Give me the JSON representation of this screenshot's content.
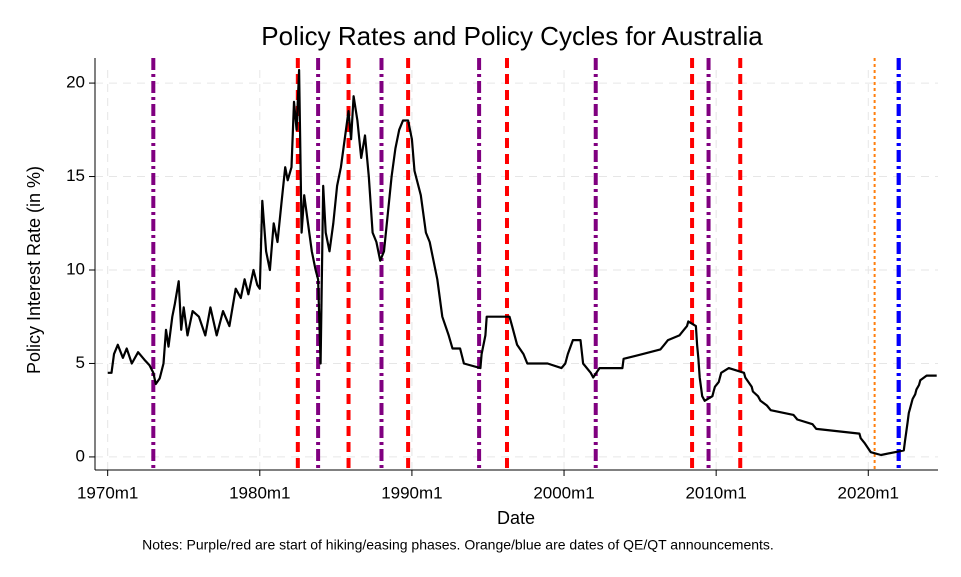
{
  "chart_data": {
    "type": "line",
    "title": "Policy Rates and Policy Cycles for Australia",
    "xlabel": "Date",
    "ylabel": "Policy Interest Rate (in %)",
    "note": "Notes: Purple/red are start of hiking/easing phases. Orange/blue are dates of QE/QT announcements.",
    "xlim": [
      "1969m3",
      "2024m8"
    ],
    "xticks": [
      "1970m1",
      "1980m1",
      "1990m1",
      "2000m1",
      "2010m1",
      "2020m1"
    ],
    "ylim": [
      -0.7,
      20.7
    ],
    "yticks": [
      0,
      5,
      10,
      15,
      20
    ],
    "grid": true,
    "series": [
      {
        "color": "#000000",
        "x": [
          "1970m1",
          "1970m4",
          "1970m6",
          "1970m9",
          "1971m1",
          "1971m4",
          "1971m8",
          "1972m1",
          "1972m6",
          "1972m10",
          "1973m1",
          "1973m3",
          "1973m6",
          "1973m9",
          "1973m11",
          "1974m1",
          "1974m4",
          "1974m6",
          "1974m9",
          "1974m11",
          "1975m1",
          "1975m4",
          "1975m8",
          "1976m1",
          "1976m6",
          "1976m10",
          "1977m3",
          "1977m8",
          "1978m1",
          "1978m6",
          "1978m10",
          "1979m1",
          "1979m4",
          "1979m8",
          "1979m11",
          "1980m1",
          "1980m3",
          "1980m6",
          "1980m9",
          "1980m12",
          "1981m3",
          "1981m6",
          "1981m9",
          "1981m11",
          "1982m2",
          "1982m4",
          "1982m6",
          "1982m8",
          "1982m10",
          "1982m12",
          "1983m3",
          "1983m6",
          "1983m9",
          "1983m11",
          "1984m1",
          "1984m3",
          "1984m5",
          "1984m8",
          "1984m11",
          "1985m2",
          "1985m5",
          "1985m8",
          "1985m11",
          "1986m1",
          "1986m3",
          "1986m6",
          "1986m9",
          "1986m12",
          "1987m3",
          "1987m6",
          "1987m9",
          "1987m12",
          "1988m3",
          "1988m6",
          "1988m9",
          "1988m12",
          "1989m3",
          "1989m6",
          "1989m10",
          "1990m1",
          "1990m3",
          "1990m8",
          "1990m12",
          "1991m3",
          "1991m6",
          "1991m9",
          "1992m1",
          "1992m6",
          "1992m9",
          "1993m3",
          "1993m6",
          "1994m7",
          "1994m8",
          "1994m11",
          "1994m12",
          "1996m6",
          "1996m8",
          "1996m12",
          "1997m5",
          "1997m8",
          "1998m12",
          "1999m11",
          "2000m2",
          "2000m4",
          "2000m8",
          "2001m2",
          "2001m4",
          "2001m10",
          "2001m12",
          "2002m5",
          "2003m11",
          "2003m12",
          "2005m3",
          "2006m5",
          "2006m8",
          "2006m11",
          "2007m8",
          "2007m11",
          "2008m2",
          "2008m3",
          "2008m9",
          "2008m10",
          "2008m11",
          "2008m12",
          "2009m2",
          "2009m4",
          "2009m10",
          "2009m11",
          "2009m12",
          "2010m3",
          "2010m5",
          "2010m11",
          "2011m11",
          "2011m12",
          "2012m5",
          "2012m6",
          "2012m10",
          "2012m12",
          "2013m5",
          "2013m8",
          "2015m2",
          "2015m5",
          "2016m5",
          "2016m8",
          "2019m6",
          "2019m7",
          "2019m10",
          "2020m3",
          "2020m11",
          "2022m5",
          "2022m6",
          "2022m7",
          "2022m8",
          "2022m9",
          "2022m10",
          "2022m12",
          "2023m2",
          "2023m3",
          "2023m5",
          "2023m6",
          "2023m11",
          "2024m7"
        ],
        "values": [
          4.5,
          4.5,
          5.5,
          6.0,
          5.3,
          5.8,
          5.0,
          5.6,
          5.2,
          4.9,
          4.5,
          3.9,
          4.2,
          5.0,
          6.8,
          5.9,
          7.5,
          8.2,
          9.4,
          6.8,
          8.0,
          6.5,
          7.8,
          7.5,
          6.5,
          8.0,
          6.5,
          7.8,
          7.0,
          9.0,
          8.5,
          9.5,
          8.7,
          10.0,
          9.2,
          9.0,
          13.7,
          11.0,
          10.0,
          12.5,
          11.5,
          13.5,
          15.5,
          14.8,
          15.5,
          19.0,
          17.5,
          20.7,
          12.0,
          14.0,
          12.5,
          11.0,
          10.0,
          9.5,
          5.0,
          14.5,
          12.0,
          11.0,
          12.5,
          14.5,
          15.5,
          17.0,
          18.5,
          17.0,
          19.3,
          18.0,
          16.0,
          17.2,
          15.0,
          12.0,
          11.5,
          10.5,
          11.0,
          13.0,
          15.0,
          16.5,
          17.5,
          18.0,
          18.0,
          17.0,
          15.3,
          14.0,
          12.0,
          11.5,
          10.5,
          9.5,
          7.5,
          6.5,
          5.8,
          5.8,
          5.0,
          4.75,
          5.5,
          6.5,
          7.5,
          7.5,
          7.0,
          6.0,
          5.5,
          5.0,
          5.0,
          4.75,
          5.0,
          5.5,
          6.25,
          6.25,
          5.0,
          4.5,
          4.25,
          4.75,
          4.75,
          5.25,
          5.5,
          5.75,
          6.0,
          6.25,
          6.5,
          6.75,
          7.0,
          7.25,
          7.0,
          6.0,
          5.25,
          4.25,
          3.25,
          3.0,
          3.25,
          3.5,
          3.75,
          4.0,
          4.5,
          4.75,
          4.5,
          4.25,
          3.75,
          3.5,
          3.25,
          3.0,
          2.75,
          2.5,
          2.25,
          2.0,
          1.75,
          1.5,
          1.25,
          1.0,
          0.75,
          0.25,
          0.1,
          0.35,
          0.85,
          1.35,
          1.85,
          2.35,
          2.6,
          3.1,
          3.35,
          3.6,
          3.85,
          4.1,
          4.35,
          4.35
        ]
      }
    ],
    "vlines": [
      {
        "color": "#800080",
        "style": "dashdot",
        "dates": [
          "1973m1",
          "1983m11",
          "1988m1",
          "1994m6",
          "2002m2",
          "2009m7",
          "2022m1"
        ]
      },
      {
        "color": "#ff0000",
        "style": "dashed",
        "dates": [
          "1982m7",
          "1985m11",
          "1989m10",
          "1996m4",
          "2008m6",
          "2011m8"
        ]
      },
      {
        "color": "#ff7f0e",
        "style": "dotted",
        "dates": [
          "2020m6"
        ]
      },
      {
        "color": "#0000ff",
        "style": "dashdot",
        "dates": [
          "2022m1"
        ]
      }
    ]
  }
}
